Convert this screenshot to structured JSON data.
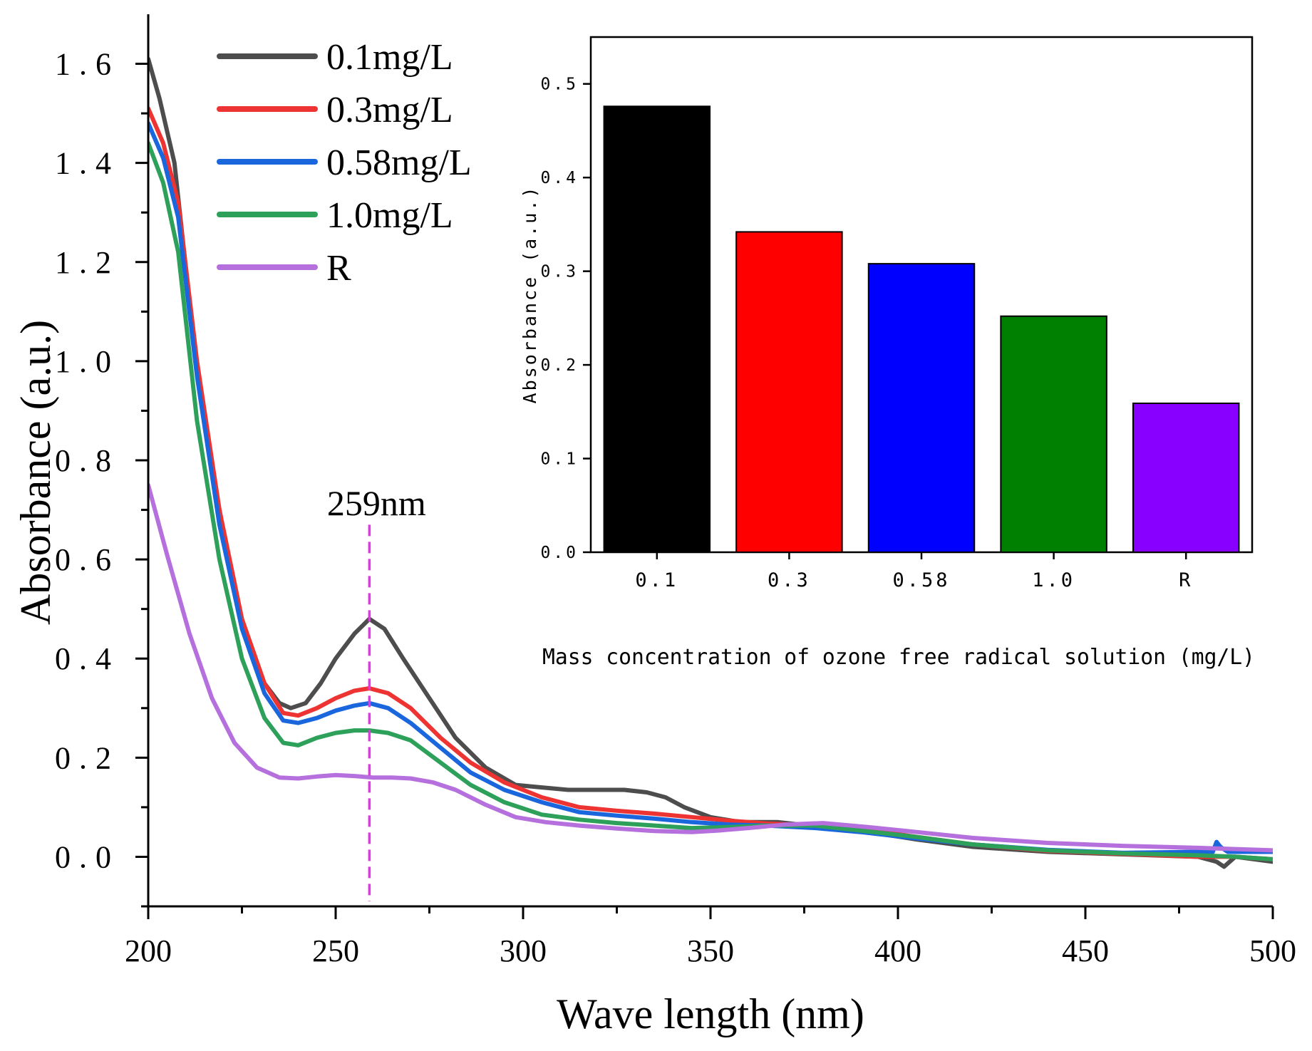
{
  "chart_data": [
    {
      "id": "main",
      "type": "line",
      "xlabel": "Wave length (nm)",
      "ylabel": "Absorbance (a.u.)",
      "xlim": [
        200,
        500
      ],
      "ylim": [
        -0.1,
        1.7
      ],
      "xticks": [
        200,
        250,
        300,
        350,
        400,
        450,
        500
      ],
      "xtick_labels": [
        "200",
        "250",
        "300",
        "350",
        "400",
        "450",
        "500"
      ],
      "yticks": [
        0.0,
        0.2,
        0.4,
        0.6,
        0.8,
        1.0,
        1.2,
        1.4,
        1.6
      ],
      "ytick_labels": [
        "0.0",
        "0.2",
        "0.4",
        "0.6",
        "0.8",
        "1.0",
        "1.2",
        "1.4",
        "1.6"
      ],
      "legend_position": "top-left",
      "annotation": {
        "text": "259nm",
        "x": 259,
        "y_from": -0.09,
        "y_to": 0.67,
        "color": "#e436e4"
      },
      "series": [
        {
          "name": "0.1mg/L",
          "color": "#4d4d4d",
          "x": [
            200,
            203,
            207,
            212,
            218,
            224,
            230,
            235,
            238,
            242,
            246,
            250,
            255,
            259,
            263,
            268,
            275,
            282,
            290,
            298,
            305,
            312,
            320,
            327,
            333,
            338,
            343,
            350,
            358,
            368,
            380,
            392,
            405,
            420,
            440,
            460,
            480,
            485,
            487,
            490,
            500
          ],
          "y": [
            1.61,
            1.53,
            1.4,
            1.05,
            0.74,
            0.5,
            0.36,
            0.31,
            0.3,
            0.31,
            0.35,
            0.4,
            0.45,
            0.48,
            0.46,
            0.4,
            0.32,
            0.24,
            0.18,
            0.145,
            0.14,
            0.135,
            0.135,
            0.135,
            0.13,
            0.12,
            0.1,
            0.08,
            0.07,
            0.07,
            0.06,
            0.05,
            0.035,
            0.02,
            0.01,
            0.005,
            0.0,
            -0.01,
            -0.02,
            0.0,
            -0.01
          ]
        },
        {
          "name": "0.3mg/L",
          "color": "#ee3333",
          "x": [
            200,
            204,
            208,
            213,
            219,
            225,
            231,
            236,
            240,
            245,
            250,
            255,
            259,
            264,
            270,
            278,
            286,
            295,
            305,
            315,
            325,
            335,
            345,
            355,
            365,
            378,
            390,
            405,
            420,
            440,
            460,
            480,
            490,
            500
          ],
          "y": [
            1.51,
            1.44,
            1.32,
            1.0,
            0.7,
            0.48,
            0.35,
            0.29,
            0.285,
            0.3,
            0.32,
            0.335,
            0.34,
            0.33,
            0.3,
            0.24,
            0.19,
            0.15,
            0.12,
            0.1,
            0.093,
            0.087,
            0.08,
            0.073,
            0.067,
            0.063,
            0.057,
            0.04,
            0.025,
            0.012,
            0.006,
            0.0,
            0.0,
            -0.005
          ]
        },
        {
          "name": "0.58mg/L",
          "color": "#1a66dd",
          "x": [
            200,
            204,
            208,
            213,
            219,
            225,
            231,
            236,
            240,
            245,
            250,
            255,
            259,
            264,
            270,
            278,
            286,
            295,
            305,
            315,
            325,
            335,
            345,
            355,
            365,
            378,
            390,
            405,
            420,
            440,
            460,
            480,
            484,
            485,
            486,
            488,
            500
          ],
          "y": [
            1.48,
            1.41,
            1.29,
            0.97,
            0.67,
            0.46,
            0.33,
            0.275,
            0.27,
            0.28,
            0.295,
            0.305,
            0.31,
            0.3,
            0.27,
            0.22,
            0.17,
            0.135,
            0.11,
            0.09,
            0.083,
            0.077,
            0.07,
            0.065,
            0.063,
            0.058,
            0.05,
            0.037,
            0.025,
            0.014,
            0.008,
            0.01,
            0.01,
            0.03,
            0.02,
            0.01,
            0.01
          ]
        },
        {
          "name": "1.0mg/L",
          "color": "#2da05a",
          "x": [
            200,
            204,
            208,
            213,
            219,
            225,
            231,
            236,
            240,
            245,
            250,
            255,
            259,
            264,
            270,
            278,
            286,
            295,
            305,
            315,
            325,
            335,
            345,
            355,
            365,
            378,
            390,
            405,
            420,
            440,
            460,
            480,
            490,
            500
          ],
          "y": [
            1.44,
            1.36,
            1.22,
            0.88,
            0.6,
            0.4,
            0.28,
            0.23,
            0.225,
            0.24,
            0.25,
            0.255,
            0.255,
            0.25,
            0.235,
            0.19,
            0.145,
            0.11,
            0.085,
            0.075,
            0.068,
            0.063,
            0.058,
            0.06,
            0.063,
            0.063,
            0.053,
            0.04,
            0.025,
            0.013,
            0.007,
            0.003,
            0.0,
            -0.005
          ]
        },
        {
          "name": "R",
          "color": "#b570dd",
          "x": [
            200,
            205,
            211,
            217,
            223,
            229,
            235,
            240,
            245,
            250,
            255,
            260,
            265,
            270,
            276,
            282,
            290,
            298,
            306,
            315,
            325,
            335,
            345,
            352,
            360,
            370,
            380,
            392,
            405,
            420,
            440,
            460,
            480,
            500
          ],
          "y": [
            0.75,
            0.61,
            0.45,
            0.32,
            0.23,
            0.18,
            0.16,
            0.158,
            0.162,
            0.165,
            0.163,
            0.16,
            0.16,
            0.158,
            0.15,
            0.135,
            0.105,
            0.08,
            0.07,
            0.063,
            0.057,
            0.052,
            0.05,
            0.053,
            0.058,
            0.065,
            0.068,
            0.06,
            0.05,
            0.038,
            0.028,
            0.022,
            0.018,
            0.013
          ]
        }
      ]
    },
    {
      "id": "inset",
      "type": "bar",
      "xlabel": "Mass concentration of ozone free radical solution (mg/L)",
      "ylabel": "Absorbance (a.u.)",
      "ylim": [
        0.0,
        0.55
      ],
      "yticks": [
        0.0,
        0.1,
        0.2,
        0.3,
        0.4,
        0.5
      ],
      "ytick_labels": [
        "0.0",
        "0.1",
        "0.2",
        "0.3",
        "0.4",
        "0.5"
      ],
      "categories": [
        "0.1",
        "0.3",
        "0.58",
        "1.0",
        "R"
      ],
      "values": [
        0.476,
        0.342,
        0.308,
        0.252,
        0.159
      ],
      "colors": [
        "#000000",
        "#ff0000",
        "#0000ff",
        "#008000",
        "#8800ff"
      ]
    }
  ]
}
